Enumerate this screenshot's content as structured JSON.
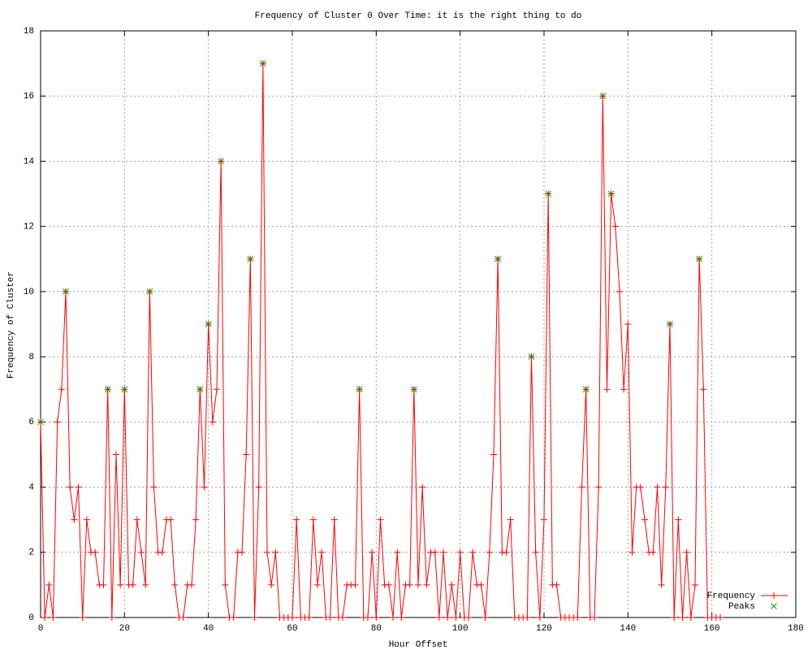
{
  "chart_data": {
    "type": "line",
    "title": "Frequency of Cluster 0 Over Time: it is the right thing to do",
    "x_label": "Hour Offset",
    "y_label": "Frequency of Cluster",
    "xlim": [
      0,
      180
    ],
    "xticks": [
      0,
      20,
      40,
      60,
      80,
      100,
      120,
      140,
      160,
      180
    ],
    "ylim": [
      0,
      18
    ],
    "yticks": [
      0,
      2,
      4,
      6,
      8,
      10,
      12,
      14,
      16,
      18
    ],
    "grid": true,
    "legend": "bottom-right",
    "series": [
      {
        "name": "Frequency",
        "color": "#ff0000",
        "marker": "plus",
        "x": [
          0,
          1,
          2,
          3,
          4,
          5,
          6,
          7,
          8,
          9,
          10,
          11,
          12,
          13,
          14,
          15,
          16,
          17,
          18,
          19,
          20,
          21,
          22,
          23,
          24,
          25,
          26,
          27,
          28,
          29,
          30,
          31,
          32,
          33,
          34,
          35,
          36,
          37,
          38,
          39,
          40,
          41,
          42,
          43,
          44,
          45,
          46,
          47,
          48,
          49,
          50,
          51,
          52,
          53,
          54,
          55,
          56,
          57,
          58,
          59,
          60,
          61,
          62,
          63,
          64,
          65,
          66,
          67,
          68,
          69,
          70,
          71,
          72,
          73,
          74,
          75,
          76,
          77,
          78,
          79,
          80,
          81,
          82,
          83,
          84,
          85,
          86,
          87,
          88,
          89,
          90,
          91,
          92,
          93,
          94,
          95,
          96,
          97,
          98,
          99,
          100,
          101,
          102,
          103,
          104,
          105,
          106,
          107,
          108,
          109,
          110,
          111,
          112,
          113,
          114,
          115,
          116,
          117,
          118,
          119,
          120,
          121,
          122,
          123,
          124,
          125,
          126,
          127,
          128,
          129,
          130,
          131,
          132,
          133,
          134,
          135,
          136,
          137,
          138,
          139,
          140,
          141,
          142,
          143,
          144,
          145,
          146,
          147,
          148,
          149,
          150,
          151,
          152,
          153,
          154,
          155,
          156,
          157,
          158,
          159,
          160,
          161,
          162
        ],
        "values": [
          6,
          0,
          1,
          0,
          6,
          7,
          10,
          4,
          3,
          4,
          0,
          3,
          2,
          2,
          1,
          1,
          7,
          0,
          5,
          1,
          7,
          1,
          1,
          3,
          2,
          1,
          10,
          4,
          2,
          2,
          3,
          3,
          1,
          0,
          0,
          1,
          1,
          3,
          7,
          4,
          9,
          6,
          7,
          14,
          1,
          0,
          0,
          2,
          2,
          5,
          11,
          0,
          4,
          17,
          2,
          1,
          2,
          0,
          0,
          0,
          0,
          3,
          0,
          0,
          0,
          3,
          1,
          2,
          0,
          0,
          3,
          0,
          0,
          1,
          1,
          1,
          7,
          0,
          0,
          2,
          0,
          3,
          1,
          1,
          0,
          2,
          0,
          1,
          1,
          7,
          1,
          4,
          1,
          2,
          2,
          0,
          2,
          0,
          1,
          0,
          2,
          0,
          0,
          2,
          1,
          1,
          0,
          2,
          5,
          11,
          2,
          2,
          3,
          0,
          0,
          0,
          0,
          8,
          2,
          0,
          3,
          13,
          1,
          1,
          0,
          0,
          0,
          0,
          0,
          4,
          7,
          0,
          0,
          4,
          16,
          7,
          13,
          12,
          10,
          7,
          9,
          2,
          4,
          4,
          3,
          2,
          2,
          4,
          1,
          4,
          9,
          0,
          3,
          0,
          2,
          0,
          1,
          11,
          7,
          0,
          0,
          0,
          0
        ]
      },
      {
        "name": "Peaks",
        "color": "#00a000",
        "marker": "cross",
        "x": [
          0,
          6,
          16,
          20,
          26,
          38,
          40,
          43,
          50,
          53,
          76,
          89,
          109,
          117,
          121,
          130,
          134,
          136,
          150,
          157
        ],
        "values": [
          6,
          10,
          7,
          7,
          10,
          7,
          9,
          14,
          11,
          17,
          7,
          7,
          11,
          8,
          13,
          7,
          16,
          13,
          9,
          11
        ]
      }
    ]
  }
}
